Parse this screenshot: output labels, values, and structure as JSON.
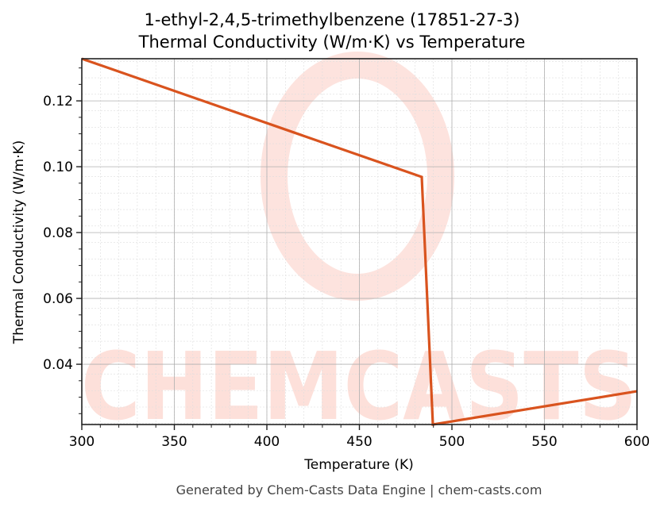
{
  "chart_data": {
    "type": "line",
    "title": "1-ethyl-2,4,5-trimethylbenzene (17851-27-3)",
    "subtitle": "Thermal Conductivity (W/m·K) vs Temperature",
    "xlabel": "Temperature (K)",
    "ylabel": "Thermal Conductivity (W/m·K)",
    "xlim": [
      300,
      600
    ],
    "ylim": [
      0.0217,
      0.1328
    ],
    "x_ticks": [
      300,
      350,
      400,
      450,
      500,
      550,
      600
    ],
    "y_ticks": [
      0.04,
      0.06,
      0.08,
      0.1,
      0.12
    ],
    "x_tick_labels": [
      "300",
      "350",
      "400",
      "450",
      "500",
      "550",
      "600"
    ],
    "y_tick_labels": [
      "0.04",
      "0.06",
      "0.08",
      "0.10",
      "0.12"
    ],
    "grid": true,
    "series": [
      {
        "name": "Thermal Conductivity",
        "color": "#d9531e",
        "x": [
          300,
          483.7,
          489.7,
          600
        ],
        "y": [
          0.1328,
          0.0969,
          0.0217,
          0.0318
        ]
      }
    ],
    "watermark": "CHEMCASTS"
  },
  "header": {
    "title_line1": "1-ethyl-2,4,5-trimethylbenzene (17851-27-3)",
    "title_line2": "Thermal Conductivity (W/m·K) vs Temperature"
  },
  "axes": {
    "xlabel": "Temperature (K)",
    "ylabel": "Thermal Conductivity (W/m·K)"
  },
  "footer": {
    "text": "Generated by Chem-Casts Data Engine | chem-casts.com"
  }
}
